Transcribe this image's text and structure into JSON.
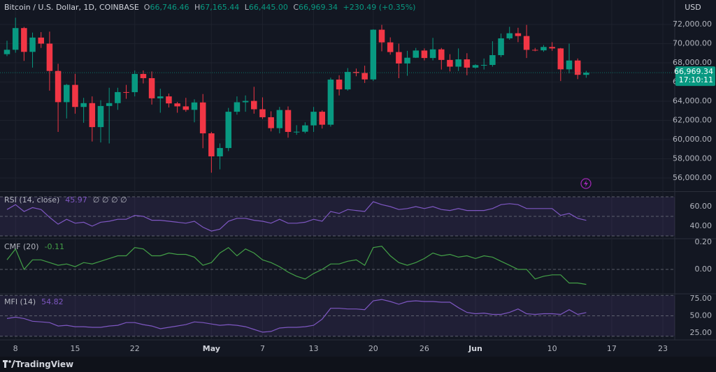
{
  "header": {
    "symbol": "Bitcoin / U.S. Dollar, 1D, COINBASE",
    "ohlc": [
      {
        "key": "O",
        "value": "66,746.46"
      },
      {
        "key": "H",
        "value": "67,165.44"
      },
      {
        "key": "L",
        "value": "66,445.00"
      },
      {
        "key": "C",
        "value": "66,969.34"
      }
    ],
    "change": "+230.49 (+0.35%)",
    "currency": "USD"
  },
  "footer": {
    "brand": "TradingView"
  },
  "chart_data": [
    {
      "type": "candlestick",
      "grid": true,
      "up_color": "#089981",
      "down_color": "#f23645",
      "categories": [
        null,
        "8",
        null,
        null,
        null,
        null,
        null,
        null,
        "15",
        null,
        null,
        null,
        null,
        null,
        null,
        "22",
        null,
        null,
        null,
        null,
        null,
        null,
        null,
        null,
        "May",
        null,
        null,
        null,
        null,
        null,
        "7",
        null,
        null,
        null,
        null,
        null,
        "13",
        null,
        null,
        null,
        null,
        null,
        null,
        "20",
        null,
        null,
        null,
        null,
        null,
        "26",
        null,
        null,
        null,
        null,
        null,
        "Jun",
        null,
        null,
        null,
        null,
        null,
        null,
        null,
        null,
        "10",
        null,
        null,
        null,
        null,
        null,
        null,
        "17",
        null,
        null,
        null,
        null,
        null,
        "23"
      ],
      "open": [
        68900,
        69360,
        71620,
        69140,
        70630,
        70000,
        67150,
        63900,
        65700,
        63400,
        63800,
        61300,
        63500,
        63800,
        64950,
        64940,
        66840,
        66400,
        64300,
        64500,
        63770,
        63460,
        63100,
        63870,
        60650,
        58250,
        59120,
        62900,
        63890,
        64030,
        63160,
        62330,
        61190,
        63080,
        60800,
        60820,
        61480,
        62900,
        61550,
        66250,
        65230,
        67050,
        66940,
        66270,
        71450,
        70130,
        69120,
        67930,
        68530,
        69280,
        68500,
        69400,
        68300,
        67600,
        68360,
        67500,
        67760,
        67780,
        68800,
        70550,
        71080,
        70790,
        69350,
        69300,
        69650,
        69500,
        67320,
        68240,
        66746.46,
        null,
        null,
        null,
        null,
        null,
        null,
        null,
        null,
        null
      ],
      "high": [
        70300,
        72700,
        71740,
        71150,
        71200,
        71250,
        67900,
        65800,
        66850,
        64350,
        64500,
        64100,
        65400,
        65400,
        65700,
        67200,
        67200,
        67100,
        65300,
        64800,
        63930,
        64350,
        64200,
        64750,
        60800,
        59600,
        63300,
        64500,
        64600,
        65500,
        64400,
        62950,
        63400,
        63450,
        61500,
        61800,
        63400,
        63050,
        66450,
        66700,
        67450,
        67400,
        67700,
        71500,
        71950,
        70650,
        70000,
        69250,
        69550,
        69500,
        70600,
        69550,
        68900,
        69500,
        69000,
        67850,
        68450,
        70250,
        71050,
        71750,
        71650,
        71950,
        69550,
        69850,
        70150,
        69550,
        70000,
        68450,
        67165.44,
        null,
        null,
        null,
        null,
        null,
        null,
        null,
        null,
        null
      ],
      "low": [
        68700,
        69050,
        68200,
        67500,
        69550,
        65100,
        60800,
        62200,
        62700,
        61750,
        59800,
        59700,
        59600,
        63100,
        64250,
        64500,
        65850,
        63650,
        62800,
        63350,
        62800,
        62900,
        61800,
        59100,
        56550,
        56900,
        58800,
        62600,
        62900,
        62700,
        62150,
        60850,
        60650,
        60200,
        60500,
        60650,
        60800,
        61150,
        61350,
        64600,
        65100,
        66600,
        65900,
        66100,
        69200,
        68850,
        66400,
        66650,
        68500,
        68250,
        68250,
        67300,
        67100,
        67150,
        66700,
        67400,
        67300,
        67600,
        68600,
        70400,
        70150,
        68500,
        69200,
        69150,
        69250,
        66100,
        66900,
        66300,
        66445,
        null,
        null,
        null,
        null,
        null,
        null,
        null,
        null,
        null
      ],
      "close": [
        69360,
        71620,
        69140,
        70630,
        70000,
        67150,
        63900,
        65700,
        63400,
        63800,
        61300,
        63500,
        63800,
        64950,
        64940,
        66840,
        66400,
        64300,
        64500,
        63770,
        63460,
        63100,
        63870,
        60650,
        58250,
        59120,
        62900,
        63890,
        64030,
        63160,
        62330,
        61190,
        63080,
        60800,
        60820,
        61480,
        62900,
        61550,
        66250,
        65230,
        67050,
        66940,
        66270,
        71450,
        70130,
        69120,
        67930,
        68530,
        69280,
        68500,
        69400,
        68300,
        67600,
        68360,
        67500,
        67760,
        67780,
        68800,
        70550,
        71080,
        70790,
        69350,
        69300,
        69650,
        69500,
        67320,
        68240,
        66750,
        66969.34,
        null,
        null,
        null,
        null,
        null,
        null,
        null,
        null,
        null
      ],
      "ylim": [
        54690,
        74545
      ],
      "yticks": [
        {
          "value": 72000,
          "label": "72,000.00"
        },
        {
          "value": 70000,
          "label": "70,000.00"
        },
        {
          "value": 68000,
          "label": "68,000.00"
        },
        {
          "value": 66000,
          "label": "66,000.00"
        },
        {
          "value": 64000,
          "label": "64,000.00"
        },
        {
          "value": 62000,
          "label": "62,000.00"
        },
        {
          "value": 60000,
          "label": "60,000.00"
        },
        {
          "value": 58000,
          "label": "58,000.00"
        },
        {
          "value": 56000,
          "label": "56,000.00"
        }
      ],
      "last_price": {
        "value": 66969.34,
        "label": "66,969.34",
        "countdown": "17:10:11"
      }
    },
    {
      "type": "line",
      "title": "RSI (14, close)",
      "extra": "∅ ∅ ∅ ∅",
      "color": "#7e57c2",
      "band_color": "rgba(126,87,194,0.13)",
      "values": [
        57,
        62,
        55,
        59,
        57,
        49,
        42,
        47,
        43,
        44,
        40,
        44,
        45,
        47,
        47,
        51,
        50,
        46,
        46,
        45,
        44,
        43,
        45,
        39,
        35,
        37,
        45,
        48,
        48,
        46,
        45,
        43,
        47,
        43,
        43,
        44,
        47,
        45,
        55,
        53,
        57,
        56,
        55,
        65,
        62,
        60,
        57,
        58,
        60,
        58,
        60,
        57,
        56,
        58,
        56,
        56,
        56,
        58,
        62,
        63,
        62,
        58,
        58,
        58,
        58,
        51,
        53,
        48,
        45.97,
        null,
        null,
        null,
        null,
        null,
        null,
        null,
        null,
        null
      ],
      "ylim": [
        27.9,
        74.3
      ],
      "yticks": [
        {
          "value": 60,
          "label": "60.00"
        },
        {
          "value": 40,
          "label": "40.00"
        }
      ],
      "bands": [
        30,
        50,
        70
      ]
    },
    {
      "type": "line",
      "title": "CMF (20)",
      "color": "#43a047",
      "values": [
        0.07,
        0.15,
        0,
        0.07,
        0.07,
        0.05,
        0.03,
        0.04,
        0.02,
        0.05,
        0.04,
        0.06,
        0.08,
        0.1,
        0.1,
        0.16,
        0.15,
        0.1,
        0.1,
        0.12,
        0.11,
        0.11,
        0.09,
        0.03,
        0.05,
        0.12,
        0.16,
        0.1,
        0.15,
        0.12,
        0.07,
        0.05,
        0.02,
        -0.02,
        -0.05,
        -0.07,
        -0.03,
        0,
        0.04,
        0.04,
        0.06,
        0.07,
        0.03,
        0.16,
        0.17,
        0.1,
        0.05,
        0.03,
        0.05,
        0.08,
        0.12,
        0.1,
        0.11,
        0.09,
        0.1,
        0.08,
        0.1,
        0.09,
        0.06,
        0.03,
        0,
        0,
        -0.07,
        -0.05,
        -0.04,
        -0.04,
        -0.1,
        -0.1,
        -0.11,
        null,
        null,
        null,
        null,
        null,
        null,
        null,
        null,
        null
      ],
      "ylim": [
        -0.174,
        0.22
      ],
      "yticks": [
        {
          "value": 0.2,
          "label": "0.20"
        },
        {
          "value": 0,
          "label": "0.00"
        }
      ],
      "bands": [
        0
      ]
    },
    {
      "type": "line",
      "title": "MFI (14)",
      "color": "#7e57c2",
      "band_color": "rgba(126,87,194,0.13)",
      "values": [
        46,
        48,
        46,
        42,
        41,
        40,
        35,
        36,
        34,
        34,
        33,
        33,
        35,
        36,
        40,
        40,
        37,
        35,
        31,
        33,
        35,
        37,
        41,
        40,
        38,
        36,
        37,
        36,
        34,
        30,
        26,
        27,
        32,
        33,
        33,
        34,
        36,
        45,
        61,
        61,
        60,
        60,
        59,
        72,
        74,
        71,
        67,
        71,
        72,
        71,
        71,
        70,
        70,
        62,
        55,
        53,
        54,
        52,
        52,
        55,
        60,
        53,
        52,
        53,
        53,
        52,
        59,
        52,
        54.82,
        null,
        null,
        null,
        null,
        null,
        null,
        null,
        null,
        null
      ],
      "ylim": [
        15.6,
        81.25
      ],
      "yticks": [
        {
          "value": 75,
          "label": "75.00"
        },
        {
          "value": 50,
          "label": "50.00"
        },
        {
          "value": 25,
          "label": "25.00"
        }
      ],
      "bands": [
        20,
        50,
        80
      ]
    }
  ]
}
